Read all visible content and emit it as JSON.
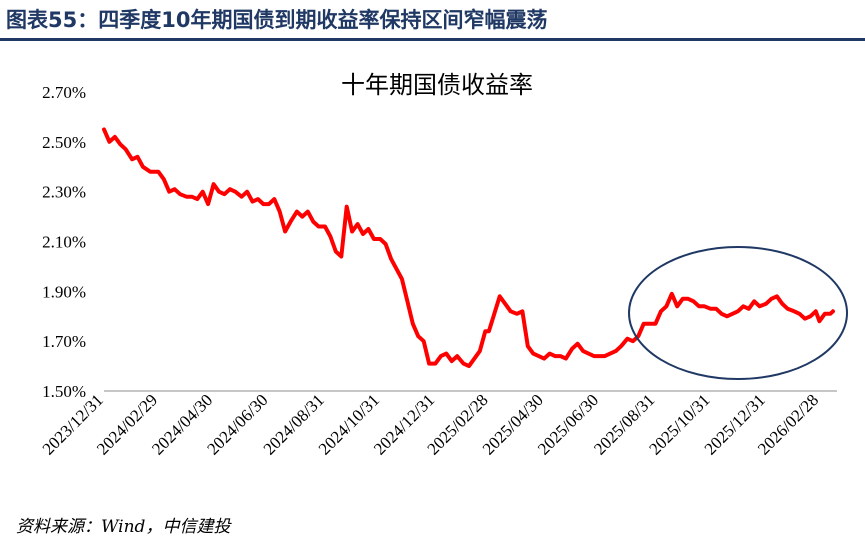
{
  "figure_title": "图表55：四季度10年期国债到期收益率保持区间窄幅震荡",
  "source": "资料来源：Wind，中信建投",
  "colors": {
    "series": "#ff0000",
    "title_blue": "#1f3864",
    "ellipse": "#1f3864"
  },
  "chart_data": {
    "type": "line",
    "title": "十年期国债收益率",
    "xlabel": "",
    "ylabel": "",
    "ylim": [
      1.5,
      2.7
    ],
    "yticks": [
      1.5,
      1.7,
      1.9,
      2.1,
      2.3,
      2.5,
      2.7
    ],
    "ytick_labels": [
      "1.50%",
      "1.70%",
      "1.90%",
      "2.10%",
      "2.30%",
      "2.50%",
      "2.70%"
    ],
    "xtick_labels": [
      "2023/12/31",
      "2024/02/29",
      "2024/04/30",
      "2024/06/30",
      "2024/08/31",
      "2024/10/31",
      "2024/12/31",
      "2025/02/28",
      "2025/04/30",
      "2025/06/30",
      "2025/08/31",
      "2025/10/31",
      "2025/12/31",
      "2026/02/28"
    ],
    "grid": false,
    "legend": "none",
    "annotation": "ellipse highlighting 2025/08/31 – 2026/03",
    "series": [
      {
        "x": [
          "2023/12/31",
          "2024/01/06",
          "2024/01/12",
          "2024/01/18",
          "2024/01/24",
          "2024/01/31",
          "2024/02/06",
          "2024/02/12",
          "2024/02/20",
          "2024/02/29",
          "2024/03/06",
          "2024/03/12",
          "2024/03/18",
          "2024/03/24",
          "2024/03/31",
          "2024/04/06",
          "2024/04/12",
          "2024/04/18",
          "2024/04/24",
          "2024/04/30",
          "2024/05/06",
          "2024/05/12",
          "2024/05/18",
          "2024/05/24",
          "2024/05/31",
          "2024/06/06",
          "2024/06/12",
          "2024/06/18",
          "2024/06/24",
          "2024/06/30",
          "2024/07/06",
          "2024/07/12",
          "2024/07/18",
          "2024/07/24",
          "2024/07/31",
          "2024/08/06",
          "2024/08/12",
          "2024/08/18",
          "2024/08/24",
          "2024/08/31",
          "2024/09/06",
          "2024/09/12",
          "2024/09/18",
          "2024/09/24",
          "2024/09/30",
          "2024/10/06",
          "2024/10/12",
          "2024/10/18",
          "2024/10/24",
          "2024/10/31",
          "2024/11/06",
          "2024/11/12",
          "2024/11/18",
          "2024/11/24",
          "2024/11/30",
          "2024/12/06",
          "2024/12/12",
          "2024/12/18",
          "2024/12/24",
          "2024/12/31",
          "2025/01/06",
          "2025/01/12",
          "2025/01/18",
          "2025/01/24",
          "2025/01/31",
          "2025/02/06",
          "2025/02/12",
          "2025/02/18",
          "2025/02/24",
          "2025/02/28",
          "2025/03/06",
          "2025/03/12",
          "2025/03/18",
          "2025/03/24",
          "2025/03/31",
          "2025/04/06",
          "2025/04/12",
          "2025/04/18",
          "2025/04/24",
          "2025/04/30",
          "2025/05/06",
          "2025/05/12",
          "2025/05/18",
          "2025/05/24",
          "2025/05/31",
          "2025/06/06",
          "2025/06/12",
          "2025/06/18",
          "2025/06/24",
          "2025/06/30",
          "2025/07/06",
          "2025/07/12",
          "2025/07/18",
          "2025/07/24",
          "2025/07/31",
          "2025/08/06",
          "2025/08/12",
          "2025/08/18",
          "2025/08/24",
          "2025/08/31",
          "2025/09/06",
          "2025/09/12",
          "2025/09/18",
          "2025/09/24",
          "2025/09/30",
          "2025/10/06",
          "2025/10/12",
          "2025/10/18",
          "2025/10/24",
          "2025/10/31",
          "2025/11/06",
          "2025/11/12",
          "2025/11/18",
          "2025/11/24",
          "2025/11/30",
          "2025/12/06",
          "2025/12/12",
          "2025/12/18",
          "2025/12/24",
          "2025/12/31",
          "2026/01/06",
          "2026/01/12",
          "2026/01/18",
          "2026/01/24",
          "2026/01/31",
          "2026/02/06",
          "2026/02/12",
          "2026/02/18",
          "2026/02/24",
          "2026/02/28",
          "2026/03/06",
          "2026/03/12",
          "2026/03/15"
        ],
        "values": [
          2.55,
          2.5,
          2.52,
          2.49,
          2.47,
          2.43,
          2.44,
          2.4,
          2.38,
          2.38,
          2.35,
          2.3,
          2.31,
          2.29,
          2.28,
          2.28,
          2.27,
          2.3,
          2.25,
          2.33,
          2.3,
          2.29,
          2.31,
          2.3,
          2.28,
          2.3,
          2.26,
          2.27,
          2.25,
          2.25,
          2.27,
          2.22,
          2.14,
          2.18,
          2.22,
          2.2,
          2.22,
          2.18,
          2.16,
          2.16,
          2.12,
          2.06,
          2.04,
          2.24,
          2.14,
          2.17,
          2.13,
          2.15,
          2.11,
          2.11,
          2.09,
          2.03,
          1.99,
          1.95,
          1.86,
          1.77,
          1.72,
          1.7,
          1.61,
          1.61,
          1.64,
          1.65,
          1.62,
          1.64,
          1.61,
          1.6,
          1.63,
          1.66,
          1.74,
          1.74,
          1.81,
          1.88,
          1.85,
          1.82,
          1.81,
          1.82,
          1.68,
          1.65,
          1.64,
          1.63,
          1.65,
          1.64,
          1.64,
          1.63,
          1.67,
          1.69,
          1.66,
          1.65,
          1.64,
          1.64,
          1.64,
          1.65,
          1.66,
          1.68,
          1.71,
          1.7,
          1.72,
          1.77,
          1.77,
          1.77,
          1.82,
          1.84,
          1.89,
          1.84,
          1.87,
          1.87,
          1.86,
          1.84,
          1.84,
          1.83,
          1.83,
          1.81,
          1.8,
          1.81,
          1.82,
          1.84,
          1.83,
          1.86,
          1.84,
          1.85,
          1.87,
          1.88,
          1.85,
          1.83,
          1.82,
          1.81,
          1.79,
          1.8,
          1.82,
          1.78,
          1.81,
          1.81,
          1.82
        ]
      }
    ]
  }
}
